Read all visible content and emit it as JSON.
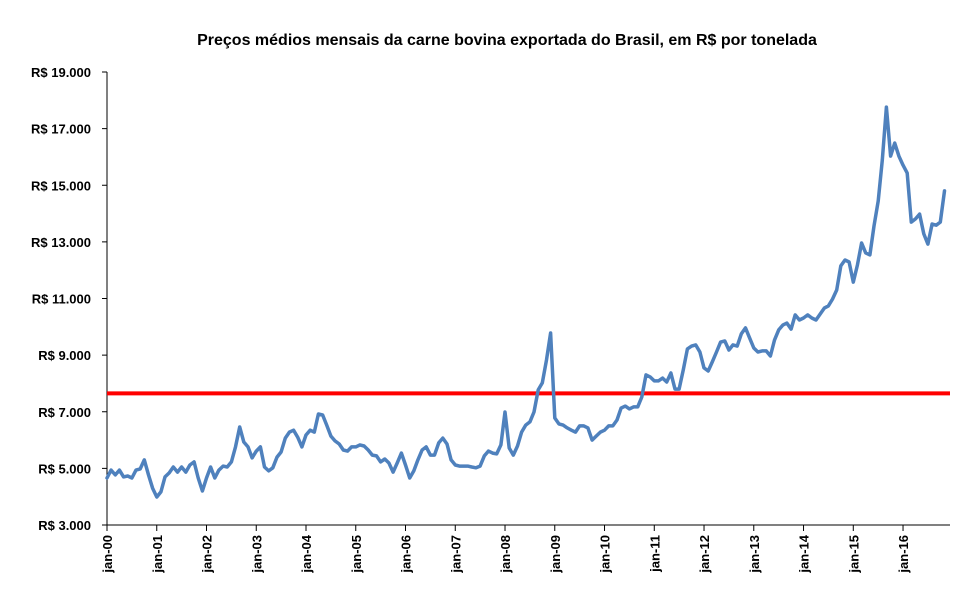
{
  "chart_data": {
    "type": "line",
    "title": "Preços médios mensais da carne bovina exportada do Brasil, em R$ por tonelada",
    "xlabel": "",
    "ylabel": "",
    "ylim": [
      3000,
      19000
    ],
    "y_ticks": [
      "R$ 3.000",
      "R$ 5.000",
      "R$ 7.000",
      "R$ 9.000",
      "R$ 11.000",
      "R$ 13.000",
      "R$ 15.000",
      "R$ 17.000",
      "R$ 19.000"
    ],
    "y_tick_values": [
      3000,
      5000,
      7000,
      9000,
      11000,
      13000,
      15000,
      17000,
      19000
    ],
    "x_ticks": [
      "jan-00",
      "jan-01",
      "jan-02",
      "jan-03",
      "jan-04",
      "jan-05",
      "jan-06",
      "jan-07",
      "jan-08",
      "jan-09",
      "jan-10",
      "jan-11",
      "jan-12",
      "jan-13",
      "jan-14",
      "jan-15",
      "jan-16"
    ],
    "x_tick_values": [
      "2000-01",
      "2001-01",
      "2002-01",
      "2003-01",
      "2004-01",
      "2005-01",
      "2006-01",
      "2007-01",
      "2008-01",
      "2009-01",
      "2010-01",
      "2011-01",
      "2012-01",
      "2013-01",
      "2014-01",
      "2015-01",
      "2016-01"
    ],
    "grid": false,
    "legend": "none",
    "colors": {
      "series": "#4F81BD",
      "reference_line": "#FF0000"
    },
    "reference_line": {
      "value": 7650
    },
    "x": [
      "2000-01",
      "2000-02",
      "2000-03",
      "2000-04",
      "2000-05",
      "2000-06",
      "2000-07",
      "2000-08",
      "2000-09",
      "2000-10",
      "2000-11",
      "2000-12",
      "2001-01",
      "2001-02",
      "2001-03",
      "2001-04",
      "2001-05",
      "2001-06",
      "2001-07",
      "2001-08",
      "2001-09",
      "2001-10",
      "2001-11",
      "2001-12",
      "2002-01",
      "2002-02",
      "2002-03",
      "2002-04",
      "2002-05",
      "2002-06",
      "2002-07",
      "2002-08",
      "2002-09",
      "2002-10",
      "2002-11",
      "2002-12",
      "2003-01",
      "2003-02",
      "2003-03",
      "2003-04",
      "2003-05",
      "2003-06",
      "2003-07",
      "2003-08",
      "2003-09",
      "2003-10",
      "2003-11",
      "2003-12",
      "2004-01",
      "2004-02",
      "2004-03",
      "2004-04",
      "2004-05",
      "2004-06",
      "2004-07",
      "2004-08",
      "2004-09",
      "2004-10",
      "2004-11",
      "2004-12",
      "2005-01",
      "2005-02",
      "2005-03",
      "2005-04",
      "2005-05",
      "2005-06",
      "2005-07",
      "2005-08",
      "2005-09",
      "2005-10",
      "2005-11",
      "2005-12",
      "2006-01",
      "2006-02",
      "2006-03",
      "2006-04",
      "2006-05",
      "2006-06",
      "2006-07",
      "2006-08",
      "2006-09",
      "2006-10",
      "2006-11",
      "2006-12",
      "2007-01",
      "2007-02",
      "2007-03",
      "2007-04",
      "2007-05",
      "2007-06",
      "2007-07",
      "2007-08",
      "2007-09",
      "2007-10",
      "2007-11",
      "2007-12",
      "2008-01",
      "2008-02",
      "2008-03",
      "2008-04",
      "2008-05",
      "2008-06",
      "2008-07",
      "2008-08",
      "2008-09",
      "2008-10",
      "2008-11",
      "2008-12",
      "2009-01",
      "2009-02",
      "2009-03",
      "2009-04",
      "2009-05",
      "2009-06",
      "2009-07",
      "2009-08",
      "2009-09",
      "2009-10",
      "2009-11",
      "2009-12",
      "2010-01",
      "2010-02",
      "2010-03",
      "2010-04",
      "2010-05",
      "2010-06",
      "2010-07",
      "2010-08",
      "2010-09",
      "2010-10",
      "2010-11",
      "2010-12",
      "2011-01",
      "2011-02",
      "2011-03",
      "2011-04",
      "2011-05",
      "2011-06",
      "2011-07",
      "2011-08",
      "2011-09",
      "2011-10",
      "2011-11",
      "2011-12",
      "2012-01",
      "2012-02",
      "2012-03",
      "2012-04",
      "2012-05",
      "2012-06",
      "2012-07",
      "2012-08",
      "2012-09",
      "2012-10",
      "2012-11",
      "2012-12",
      "2013-01",
      "2013-02",
      "2013-03",
      "2013-04",
      "2013-05",
      "2013-06",
      "2013-07",
      "2013-08",
      "2013-09",
      "2013-10",
      "2013-11",
      "2013-12",
      "2014-01",
      "2014-02",
      "2014-03",
      "2014-04",
      "2014-05",
      "2014-06",
      "2014-07",
      "2014-08",
      "2014-09",
      "2014-10",
      "2014-11",
      "2014-12",
      "2015-01",
      "2015-02",
      "2015-03",
      "2015-04",
      "2015-05",
      "2015-06",
      "2015-07",
      "2015-08",
      "2015-09",
      "2015-10",
      "2015-11",
      "2015-12",
      "2016-01",
      "2016-02",
      "2016-03",
      "2016-04",
      "2016-05",
      "2016-06",
      "2016-07",
      "2016-08",
      "2016-09",
      "2016-10",
      "2016-11"
    ],
    "series": [
      {
        "values": [
          4660,
          4940,
          4770,
          4940,
          4700,
          4730,
          4660,
          4940,
          4980,
          5300,
          4770,
          4300,
          3990,
          4170,
          4700,
          4840,
          5050,
          4870,
          5050,
          4870,
          5120,
          5230,
          4660,
          4200,
          4660,
          5050,
          4660,
          4940,
          5080,
          5050,
          5230,
          5760,
          6460,
          5930,
          5760,
          5370,
          5610,
          5760,
          5050,
          4910,
          5020,
          5400,
          5580,
          6070,
          6280,
          6350,
          6100,
          5760,
          6180,
          6350,
          6280,
          6920,
          6890,
          6530,
          6140,
          5970,
          5860,
          5650,
          5610,
          5760,
          5760,
          5830,
          5790,
          5650,
          5470,
          5440,
          5230,
          5330,
          5190,
          4870,
          5190,
          5540,
          5120,
          4660,
          4910,
          5300,
          5650,
          5760,
          5470,
          5470,
          5900,
          6070,
          5860,
          5300,
          5120,
          5080,
          5080,
          5080,
          5050,
          5020,
          5080,
          5440,
          5610,
          5540,
          5510,
          5830,
          6990,
          5720,
          5470,
          5790,
          6280,
          6530,
          6640,
          6990,
          7770,
          8020,
          8830,
          9780,
          6780,
          6570,
          6530,
          6430,
          6350,
          6280,
          6500,
          6500,
          6430,
          6000,
          6140,
          6280,
          6350,
          6500,
          6500,
          6710,
          7130,
          7200,
          7100,
          7170,
          7170,
          7520,
          8300,
          8230,
          8090,
          8090,
          8190,
          8050,
          8370,
          7800,
          7800,
          8480,
          9220,
          9320,
          9360,
          9110,
          8550,
          8440,
          8760,
          9110,
          9460,
          9500,
          9180,
          9360,
          9320,
          9750,
          9960,
          9610,
          9250,
          9110,
          9150,
          9150,
          8970,
          9530,
          9890,
          10060,
          10130,
          9920,
          10420,
          10240,
          10310,
          10420,
          10310,
          10240,
          10450,
          10660,
          10740,
          10980,
          11300,
          12150,
          12360,
          12290,
          11580,
          12180,
          12960,
          12610,
          12540,
          13560,
          14440,
          15890,
          17760,
          16030,
          16490,
          16030,
          15710,
          15430,
          13700,
          13810,
          13980,
          13280,
          12920,
          13630,
          13590,
          13700,
          14800
        ]
      }
    ]
  }
}
